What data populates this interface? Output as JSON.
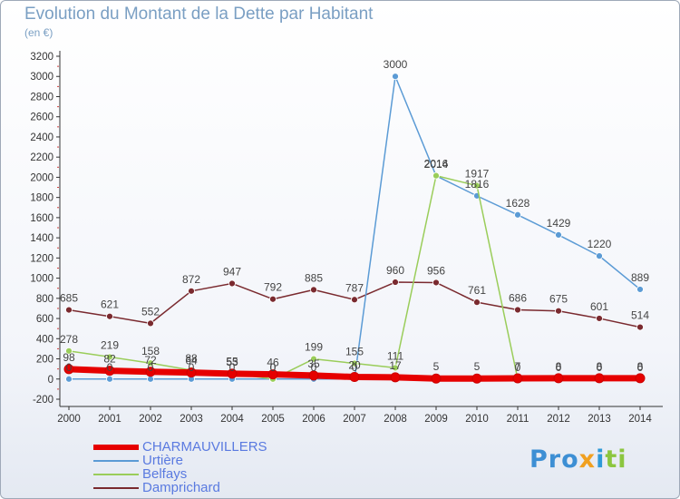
{
  "title": "Evolution du Montant de la Dette par Habitant",
  "subtitle": "(en €)",
  "logo": {
    "p1": "Pro",
    "p2": "x",
    "p3": "i",
    "p4": "ti"
  },
  "chart_data": {
    "type": "line",
    "x": [
      "2000",
      "2001",
      "2002",
      "2003",
      "2004",
      "2005",
      "2006",
      "2007",
      "2008",
      "2009",
      "2010",
      "2011",
      "2012",
      "2013",
      "2014"
    ],
    "yticks": [
      "-200",
      "0",
      "200",
      "400",
      "600",
      "800",
      "1000",
      "1200",
      "1400",
      "1600",
      "1800",
      "2000",
      "2200",
      "2400",
      "2600",
      "2800",
      "3000",
      "3200"
    ],
    "ylim": [
      -200,
      3200
    ],
    "grid": false,
    "legend_placement": "bottom-left",
    "series": [
      {
        "name": "CHARMAUVILLERS",
        "color": "#e60000",
        "values": [
          98,
          82,
          72,
          64,
          53,
          46,
          35,
          20,
          17,
          5,
          5,
          7,
          8,
          8,
          8
        ],
        "labels": [
          "98",
          "82",
          "72",
          "64",
          "53",
          "46",
          "35",
          "20",
          "17",
          "5",
          "5",
          "7",
          "8",
          "8",
          "8"
        ]
      },
      {
        "name": "Urtière",
        "color": "#5b9bd5",
        "values": [
          0,
          0,
          0,
          0,
          0,
          0,
          0,
          0,
          3000,
          2014,
          1816,
          1628,
          1429,
          1220,
          889
        ],
        "labels": [
          "0",
          "0",
          "0",
          "0",
          "0",
          "0",
          "0",
          "0",
          "3000",
          "2014",
          "1816",
          "1628",
          "1429",
          "1220",
          "889"
        ]
      },
      {
        "name": "Belfays",
        "color": "#9acd5a",
        "values": [
          278,
          219,
          158,
          88,
          55,
          0,
          199,
          155,
          111,
          2016,
          1917,
          0,
          0,
          0,
          0
        ],
        "labels": [
          "278",
          "219",
          "158",
          "88",
          "55",
          "0",
          "199",
          "155",
          "111",
          "2016",
          "1917",
          "0",
          "0",
          "0",
          "0"
        ]
      },
      {
        "name": "Damprichard",
        "color": "#7a2a2f",
        "values": [
          685,
          621,
          552,
          872,
          947,
          792,
          885,
          787,
          960,
          956,
          761,
          686,
          675,
          601,
          514
        ],
        "labels": [
          "685",
          "621",
          "552",
          "872",
          "947",
          "792",
          "885",
          "787",
          "960",
          "956",
          "761",
          "686",
          "675",
          "601",
          "514"
        ]
      }
    ]
  }
}
